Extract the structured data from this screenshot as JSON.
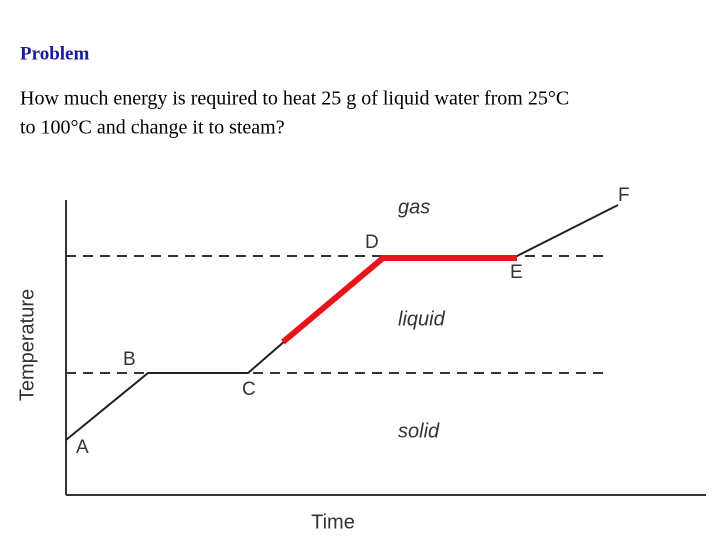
{
  "header": {
    "title": "Problem"
  },
  "body": {
    "lines": [
      "How much energy is required to heat 25 g of liquid water from 25°C",
      "to 100°C and change it to steam?"
    ]
  },
  "diagram": {
    "y_label": "Temperature",
    "x_label": "Time",
    "points": [
      "A",
      "B",
      "C",
      "D",
      "E",
      "F"
    ],
    "regions": [
      "gas",
      "liquid",
      "solid"
    ]
  }
}
